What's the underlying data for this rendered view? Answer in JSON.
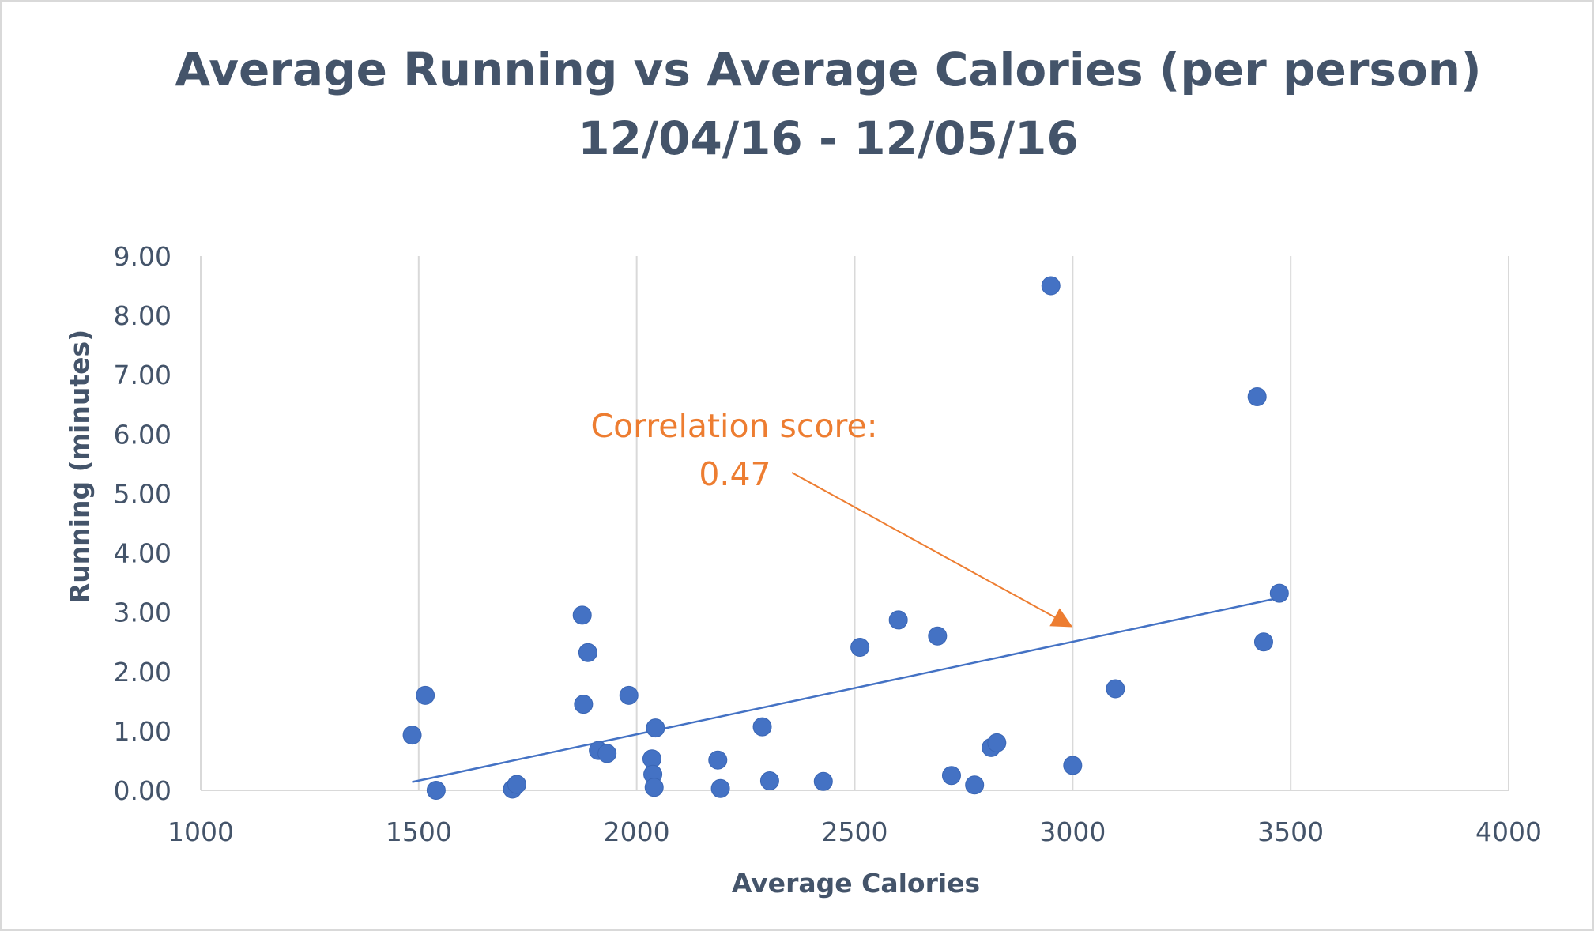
{
  "chart_data": {
    "type": "scatter",
    "title": "Average Running vs Average Calories (per person)",
    "subtitle": "12/04/16 - 12/05/16",
    "xlabel": "Average Calories",
    "ylabel": "Running (minutes)",
    "xlim": [
      1000,
      4000
    ],
    "ylim": [
      0,
      9
    ],
    "x_ticks": [
      "1000",
      "1500",
      "2000",
      "2500",
      "3000",
      "3500",
      "4000"
    ],
    "y_ticks": [
      "0.00",
      "1.00",
      "2.00",
      "3.00",
      "4.00",
      "5.00",
      "6.00",
      "7.00",
      "8.00",
      "9.00"
    ],
    "grid": "vertical",
    "legend": "none",
    "colors": {
      "points": "#4472c4",
      "trendline": "#4472c4",
      "annotation": "#ed7d31",
      "text": "#44546a",
      "grid": "#d9d9d9"
    },
    "points": [
      {
        "x": 1485,
        "y": 0.93
      },
      {
        "x": 1515,
        "y": 1.6
      },
      {
        "x": 1540,
        "y": 0.0
      },
      {
        "x": 1715,
        "y": 0.02
      },
      {
        "x": 1725,
        "y": 0.1
      },
      {
        "x": 1875,
        "y": 2.95
      },
      {
        "x": 1878,
        "y": 1.45
      },
      {
        "x": 1888,
        "y": 2.32
      },
      {
        "x": 1912,
        "y": 0.67
      },
      {
        "x": 1932,
        "y": 0.62
      },
      {
        "x": 1982,
        "y": 1.6
      },
      {
        "x": 2035,
        "y": 0.53
      },
      {
        "x": 2037,
        "y": 0.27
      },
      {
        "x": 2040,
        "y": 0.05
      },
      {
        "x": 2043,
        "y": 1.05
      },
      {
        "x": 2186,
        "y": 0.51
      },
      {
        "x": 2192,
        "y": 0.03
      },
      {
        "x": 2288,
        "y": 1.07
      },
      {
        "x": 2305,
        "y": 0.16
      },
      {
        "x": 2428,
        "y": 0.15
      },
      {
        "x": 2512,
        "y": 2.41
      },
      {
        "x": 2600,
        "y": 2.87
      },
      {
        "x": 2690,
        "y": 2.6
      },
      {
        "x": 2722,
        "y": 0.25
      },
      {
        "x": 2775,
        "y": 0.09
      },
      {
        "x": 2813,
        "y": 0.72
      },
      {
        "x": 2826,
        "y": 0.8
      },
      {
        "x": 2950,
        "y": 8.5
      },
      {
        "x": 3000,
        "y": 0.42
      },
      {
        "x": 3098,
        "y": 1.71
      },
      {
        "x": 3423,
        "y": 6.63
      },
      {
        "x": 3438,
        "y": 2.5
      },
      {
        "x": 3474,
        "y": 3.32
      }
    ],
    "trendline": {
      "x": [
        1485,
        3460
      ],
      "y": [
        0.14,
        3.22
      ]
    },
    "annotation": {
      "lines": [
        "Correlation score:",
        "0.47"
      ],
      "value": 0.47,
      "arrow_target": {
        "x": 3000,
        "y": 2.75
      }
    }
  }
}
